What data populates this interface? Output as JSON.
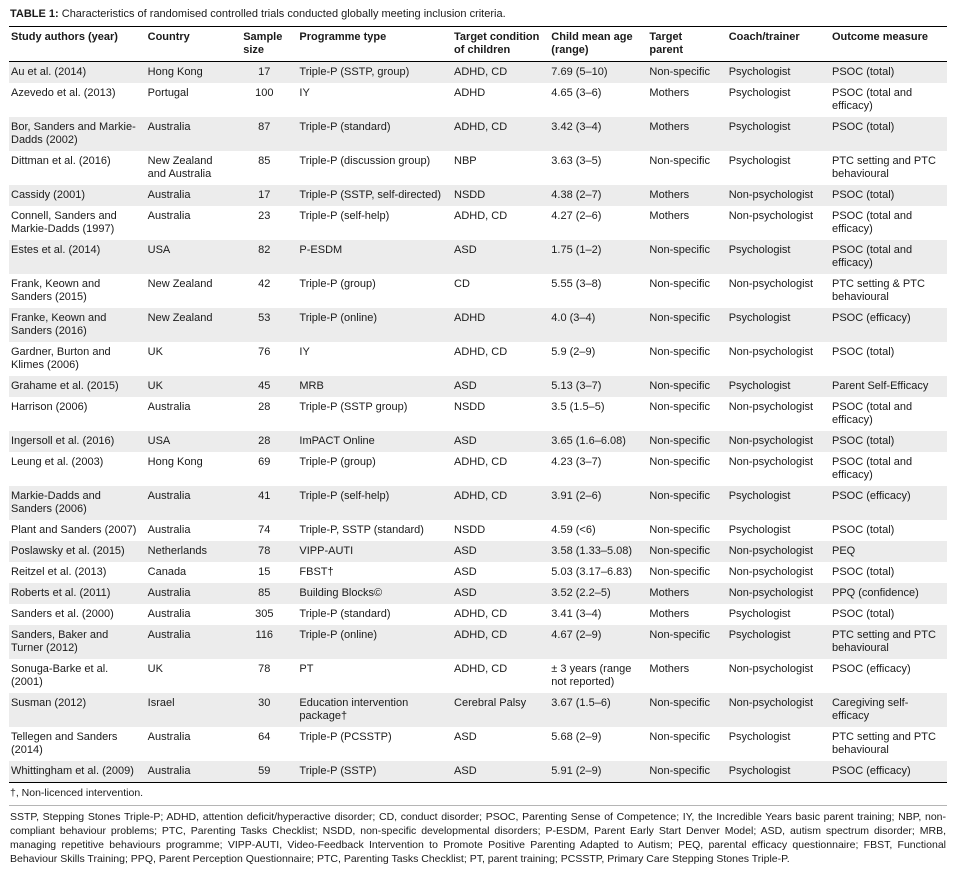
{
  "title": {
    "label": "TABLE 1:",
    "text": "Characteristics of randomised controlled trials conducted globally meeting inclusion criteria."
  },
  "table": {
    "columns": [
      "Study authors (year)",
      "Country",
      "Sample size",
      "Programme type",
      "Target condition of children",
      "Child mean age (range)",
      "Target parent",
      "Coach/trainer",
      "Outcome measure"
    ],
    "rows": [
      [
        "Au et al. (2014)",
        "Hong Kong",
        "17",
        "Triple-P (SSTP, group)",
        "ADHD, CD",
        "7.69 (5–10)",
        "Non-specific",
        "Psychologist",
        "PSOC (total)"
      ],
      [
        "Azevedo et al. (2013)",
        "Portugal",
        "100",
        "IY",
        "ADHD",
        "4.65 (3–6)",
        "Mothers",
        "Psychologist",
        "PSOC (total and efficacy)"
      ],
      [
        "Bor, Sanders and Markie-Dadds (2002)",
        "Australia",
        "87",
        "Triple-P (standard)",
        "ADHD, CD",
        "3.42 (3–4)",
        "Mothers",
        "Psychologist",
        "PSOC (total)"
      ],
      [
        "Dittman et al. (2016)",
        "New Zealand and Australia",
        "85",
        "Triple-P (discussion group)",
        "NBP",
        "3.63 (3–5)",
        "Non-specific",
        "Psychologist",
        "PTC setting and PTC behavioural"
      ],
      [
        "Cassidy (2001)",
        "Australia",
        "17",
        "Triple-P (SSTP, self-directed)",
        "NSDD",
        "4.38 (2–7)",
        "Mothers",
        "Non-psychologist",
        "PSOC (total)"
      ],
      [
        "Connell, Sanders and Markie-Dadds (1997)",
        "Australia",
        "23",
        "Triple-P (self-help)",
        "ADHD, CD",
        "4.27 (2–6)",
        "Mothers",
        "Non-psychologist",
        "PSOC (total and efficacy)"
      ],
      [
        "Estes et al. (2014)",
        "USA",
        "82",
        "P-ESDM",
        "ASD",
        "1.75 (1–2)",
        "Non-specific",
        "Psychologist",
        "PSOC (total and efficacy)"
      ],
      [
        "Frank, Keown and Sanders (2015)",
        "New Zealand",
        "42",
        "Triple-P (group)",
        "CD",
        "5.55 (3–8)",
        "Non-specific",
        "Non-psychologist",
        "PTC setting & PTC behavioural"
      ],
      [
        "Franke, Keown and Sanders (2016)",
        "New Zealand",
        "53",
        "Triple-P (online)",
        "ADHD",
        "4.0 (3–4)",
        "Non-specific",
        "Psychologist",
        "PSOC (efficacy)"
      ],
      [
        "Gardner, Burton and Klimes (2006)",
        "UK",
        "76",
        "IY",
        "ADHD, CD",
        "5.9 (2–9)",
        "Non-specific",
        "Non-psychologist",
        "PSOC (total)"
      ],
      [
        "Grahame et al. (2015)",
        "UK",
        "45",
        "MRB",
        "ASD",
        "5.13 (3–7)",
        "Non-specific",
        "Psychologist",
        "Parent Self-Efficacy"
      ],
      [
        "Harrison (2006)",
        "Australia",
        "28",
        "Triple-P (SSTP group)",
        "NSDD",
        "3.5 (1.5–5)",
        "Non-specific",
        "Non-psychologist",
        "PSOC (total and efficacy)"
      ],
      [
        "Ingersoll et al. (2016)",
        "USA",
        "28",
        "ImPACT Online",
        "ASD",
        "3.65 (1.6–6.08)",
        "Non-specific",
        "Non-psychologist",
        "PSOC (total)"
      ],
      [
        "Leung et al. (2003)",
        "Hong Kong",
        "69",
        "Triple-P (group)",
        "ADHD, CD",
        "4.23 (3–7)",
        "Non-specific",
        "Non-psychologist",
        "PSOC (total and efficacy)"
      ],
      [
        "Markie-Dadds and Sanders (2006)",
        "Australia",
        "41",
        "Triple-P (self-help)",
        "ADHD, CD",
        "3.91 (2–6)",
        "Non-specific",
        "Psychologist",
        "PSOC (efficacy)"
      ],
      [
        "Plant and Sanders (2007)",
        "Australia",
        "74",
        "Triple-P, SSTP (standard)",
        "NSDD",
        "4.59 (<6)",
        "Non-specific",
        "Psychologist",
        "PSOC (total)"
      ],
      [
        "Poslawsky et al. (2015)",
        "Netherlands",
        "78",
        "VIPP-AUTI",
        "ASD",
        "3.58 (1.33–5.08)",
        "Non-specific",
        "Non-psychologist",
        "PEQ"
      ],
      [
        "Reitzel et al. (2013)",
        "Canada",
        "15",
        "FBST†",
        "ASD",
        "5.03 (3.17–6.83)",
        "Non-specific",
        "Non-psychologist",
        "PSOC (total)"
      ],
      [
        "Roberts et al. (2011)",
        "Australia",
        "85",
        "Building Blocks©",
        "ASD",
        "3.52 (2.2–5)",
        "Mothers",
        "Non-psychologist",
        "PPQ (confidence)"
      ],
      [
        "Sanders et al. (2000)",
        "Australia",
        "305",
        "Triple-P (standard)",
        "ADHD, CD",
        "3.41 (3–4)",
        "Mothers",
        "Psychologist",
        "PSOC (total)"
      ],
      [
        "Sanders, Baker and Turner (2012)",
        "Australia",
        "116",
        "Triple-P (online)",
        "ADHD, CD",
        "4.67 (2–9)",
        "Non-specific",
        "Psychologist",
        "PTC setting and PTC behavioural"
      ],
      [
        "Sonuga-Barke et al. (2001)",
        "UK",
        "78",
        "PT",
        "ADHD, CD",
        "± 3 years (range not reported)",
        "Mothers",
        "Non-psychologist",
        "PSOC (efficacy)"
      ],
      [
        "Susman (2012)",
        "Israel",
        "30",
        "Education intervention package†",
        "Cerebral Palsy",
        "3.67 (1.5–6)",
        "Non-specific",
        "Non-psychologist",
        "Caregiving self-efficacy"
      ],
      [
        "Tellegen and Sanders (2014)",
        "Australia",
        "64",
        "Triple-P (PCSSTP)",
        "ASD",
        "5.68 (2–9)",
        "Non-specific",
        "Psychologist",
        "PTC setting and PTC behavioural"
      ],
      [
        "Whittingham et al. (2009)",
        "Australia",
        "59",
        "Triple-P (SSTP)",
        "ASD",
        "5.91 (2–9)",
        "Non-specific",
        "Psychologist",
        "PSOC (efficacy)"
      ]
    ]
  },
  "footnotes": {
    "dagger": "†, Non-licenced intervention.",
    "abbreviations": "SSTP, Stepping Stones Triple-P; ADHD, attention deficit/hyperactive disorder; CD, conduct disorder; PSOC, Parenting Sense of Competence; IY, the Incredible Years basic parent training; NBP, non-compliant behaviour problems; PTC, Parenting Tasks Checklist; NSDD, non-specific developmental disorders; P-ESDM, Parent Early Start Denver Model; ASD, autism spectrum disorder; MRB, managing repetitive behaviours programme; VIPP-AUTI, Video-Feedback Intervention to Promote Positive Parenting Adapted to Autism; PEQ, parental efficacy questionnaire; FBST, Functional Behaviour Skills Training; PPQ, Parent Perception Questionnaire; PTC, Parenting Tasks Checklist; PT, parent training; PCSSTP, Primary Care Stepping Stones Triple-P."
  }
}
